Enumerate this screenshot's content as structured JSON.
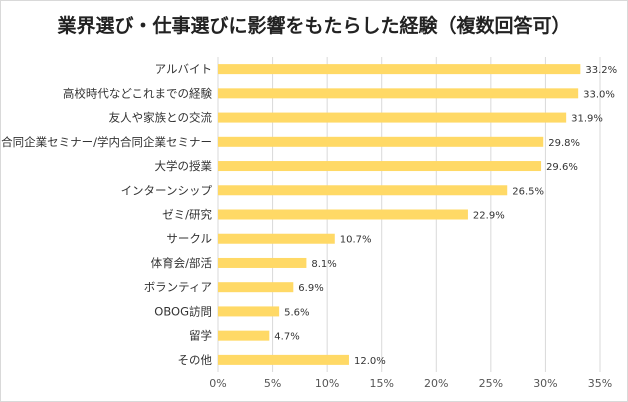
{
  "chart_data": {
    "type": "bar",
    "orientation": "horizontal",
    "title": "業界選び・仕事選びに影響をもたらした経験（複数回答可）",
    "categories": [
      "アルバイト",
      "高校時代などこれまでの経験",
      "友人や家族との交流",
      "合同企業セミナー/学内合同企業セミナー",
      "大学の授業",
      "インターンシップ",
      "ゼミ/研究",
      "サークル",
      "体育会/部活",
      "ボランティア",
      "OBOG訪問",
      "留学",
      "その他"
    ],
    "values": [
      33.2,
      33.0,
      31.9,
      29.8,
      29.6,
      26.5,
      22.9,
      10.7,
      8.1,
      6.9,
      5.6,
      4.7,
      12.0
    ],
    "value_labels": [
      "33.2%",
      "33.0%",
      "31.9%",
      "29.8%",
      "29.6%",
      "26.5%",
      "22.9%",
      "10.7%",
      "8.1%",
      "6.9%",
      "5.6%",
      "4.7%",
      "12.0%"
    ],
    "xticks": [
      0,
      5,
      10,
      15,
      20,
      25,
      30,
      35
    ],
    "xtick_labels": [
      "0%",
      "5%",
      "10%",
      "15%",
      "20%",
      "25%",
      "30%",
      "35%"
    ],
    "xlim": [
      0,
      35
    ],
    "xlabel": "",
    "ylabel": "",
    "grid": "vertical",
    "bar_color": "#ffd966",
    "grid_color": "#d9d9d9"
  }
}
